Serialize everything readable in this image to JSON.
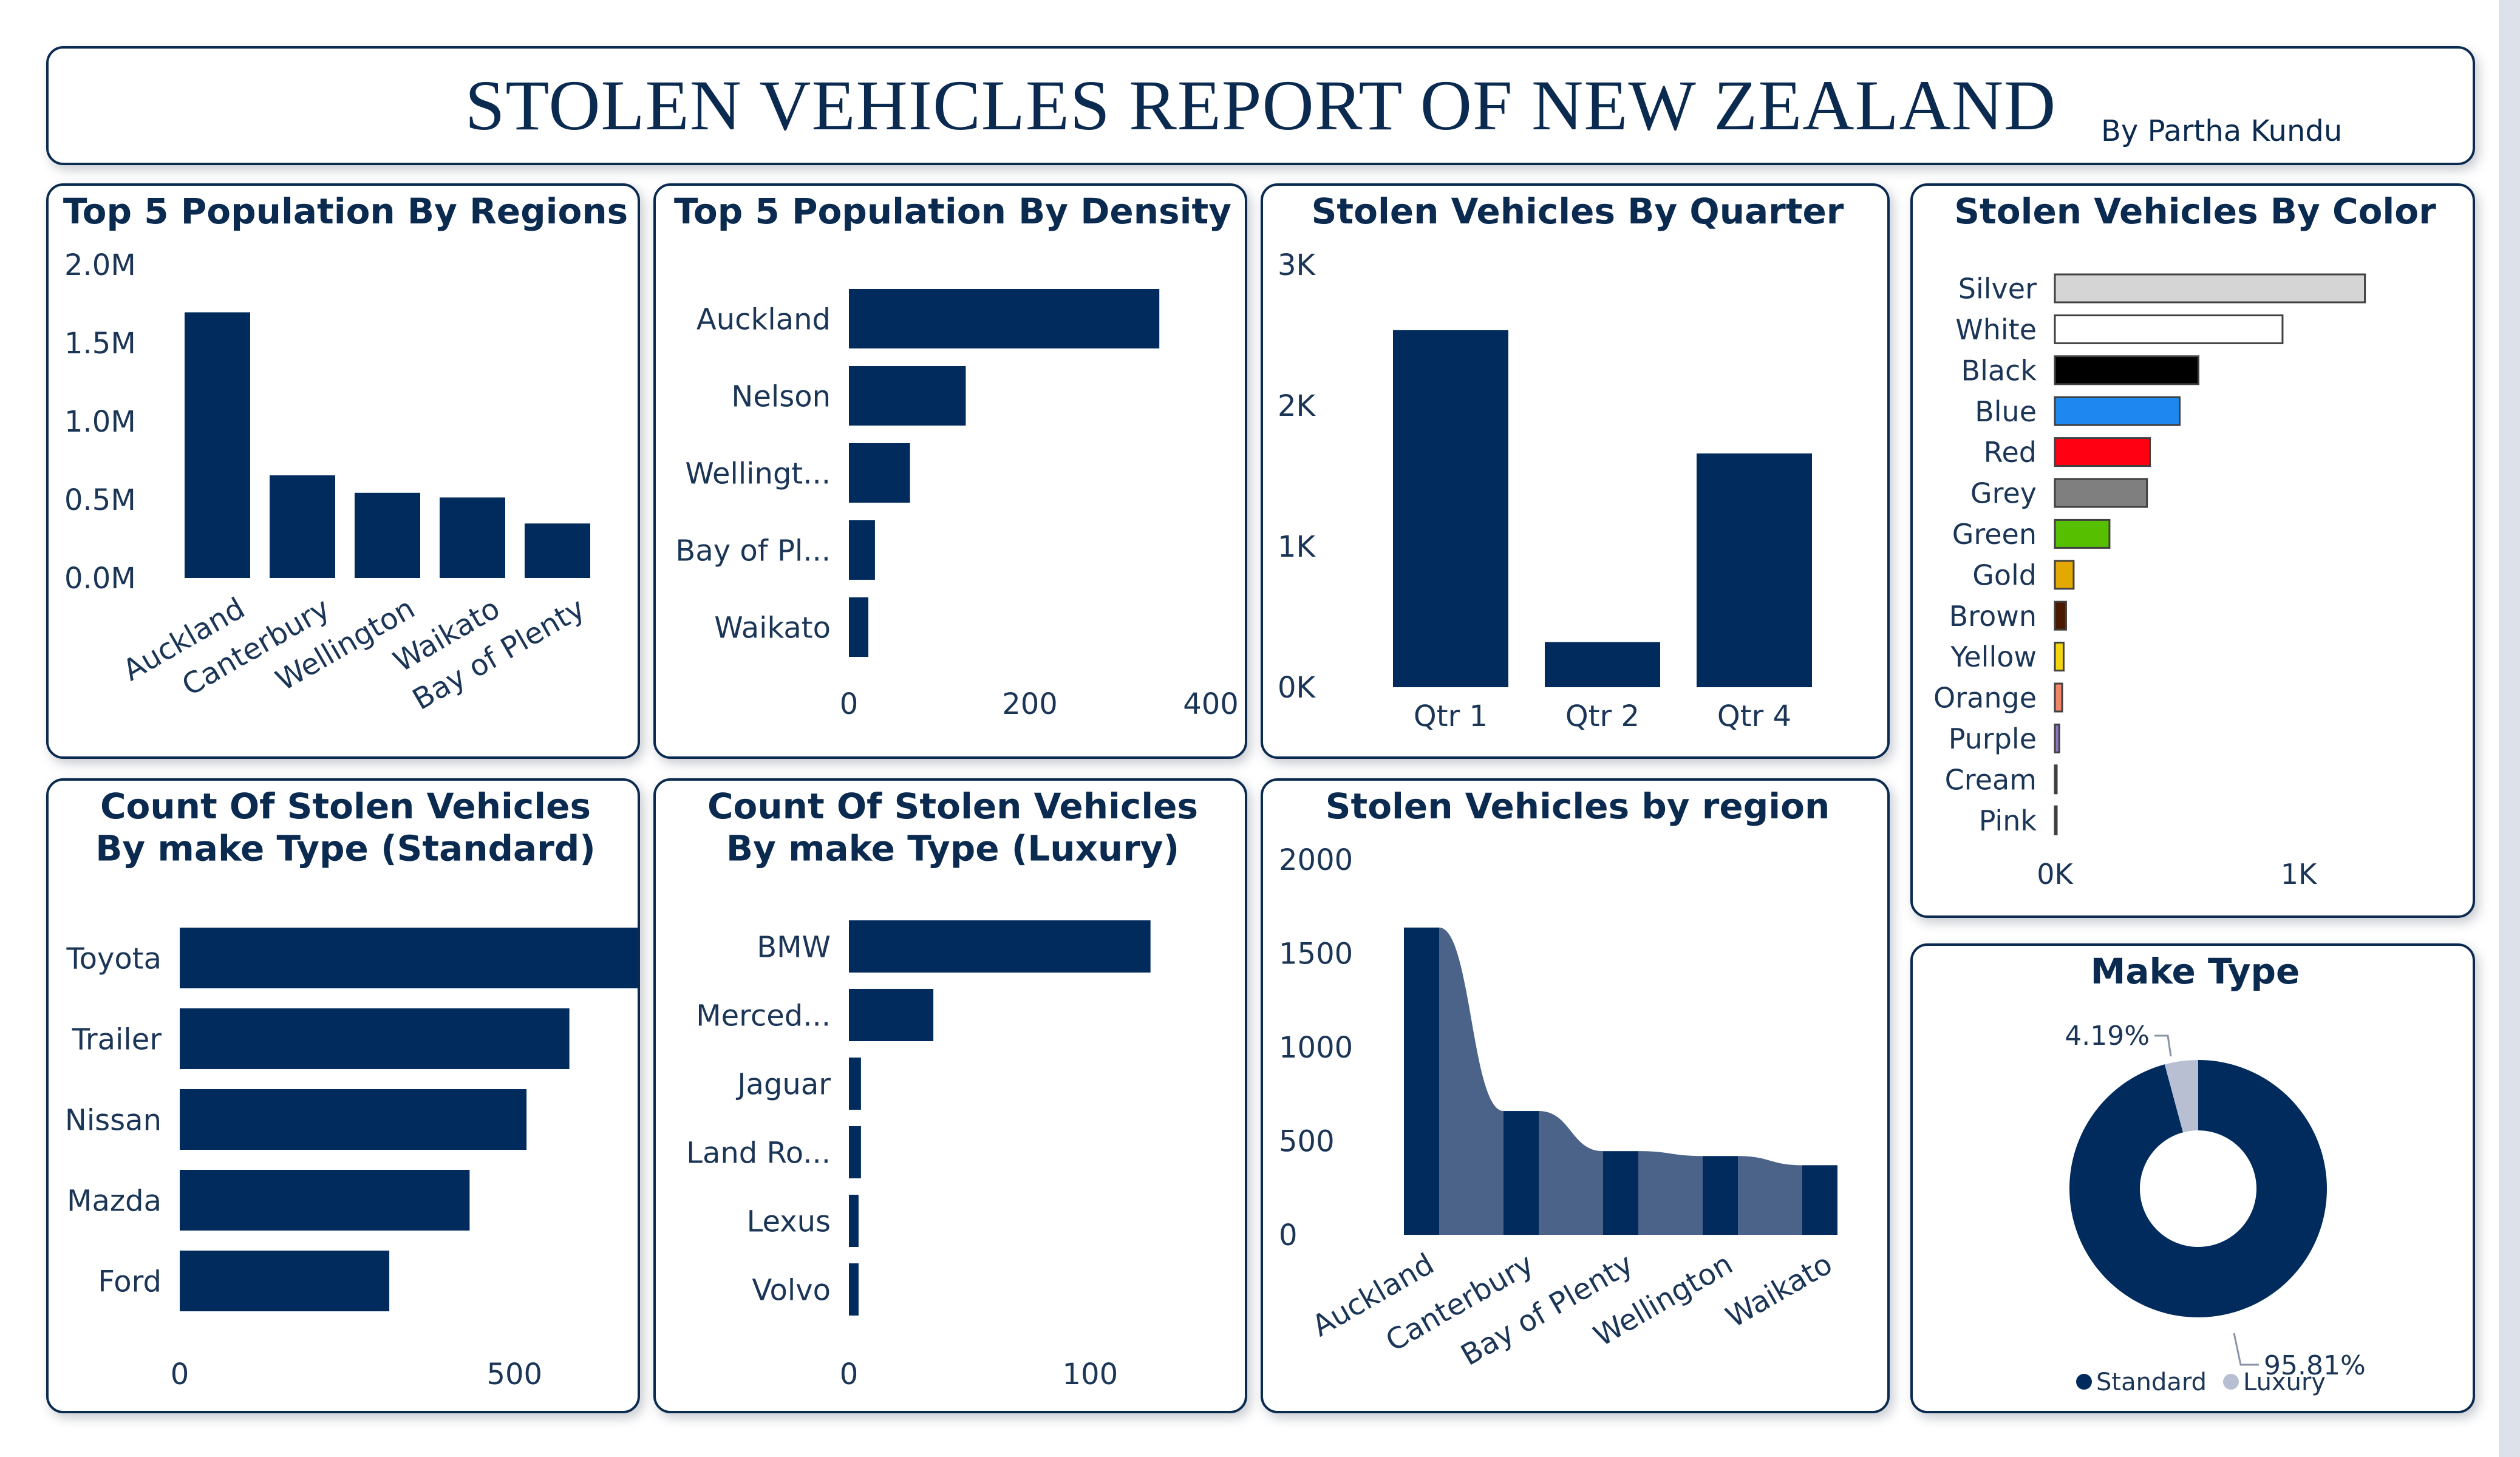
{
  "header": {
    "title": "STOLEN VEHICLES REPORT OF NEW ZEALAND",
    "byline": "By Partha Kundu"
  },
  "colors": {
    "bar": "#002b5c",
    "area": "#4b6388",
    "luxury": "#b8bfd3"
  },
  "chart_data": [
    {
      "id": "pop-regions",
      "type": "bar",
      "title": "Top 5 Population By Regions",
      "categories": [
        "Auckland",
        "Canterbury",
        "Wellington",
        "Waikato",
        "Bay of Plenty"
      ],
      "values": [
        1695900,
        655000,
        543500,
        513800,
        347700
      ],
      "ylim": [
        0,
        2000000
      ],
      "ytick_values": [
        0,
        500000,
        1000000,
        1500000,
        2000000
      ],
      "yticks": [
        "0.0M",
        "0.5M",
        "1.0M",
        "1.5M",
        "2.0M"
      ]
    },
    {
      "id": "pop-density",
      "type": "bar",
      "orientation": "horizontal",
      "title": "Top 5 Population By Density",
      "categories": [
        "Auckland",
        "Nelson",
        "Wellingt...",
        "Bay of Pl...",
        "Waikato"
      ],
      "values": [
        343.09,
        129.15,
        67.52,
        28.8,
        21.5
      ],
      "xlim": [
        0,
        400
      ],
      "xtick_values": [
        0,
        200,
        400
      ],
      "xticks": [
        "0",
        "200",
        "400"
      ]
    },
    {
      "id": "by-quarter",
      "type": "bar",
      "title": "Stolen Vehicles By Quarter",
      "categories": [
        "Qtr 1",
        "Qtr 2",
        "Qtr 4"
      ],
      "values": [
        2535,
        320,
        1660
      ],
      "ylim": [
        0,
        3000
      ],
      "ytick_values": [
        0,
        1000,
        2000,
        3000
      ],
      "yticks": [
        "0K",
        "1K",
        "2K",
        "3K"
      ]
    },
    {
      "id": "by-color",
      "type": "bar",
      "orientation": "horizontal",
      "title": "Stolen Vehicles By Color",
      "categories": [
        "Silver",
        "White",
        "Black",
        "Blue",
        "Red",
        "Grey",
        "Green",
        "Gold",
        "Brown",
        "Yellow",
        "Orange",
        "Purple",
        "Cream",
        "Pink"
      ],
      "values": [
        1272,
        934,
        589,
        512,
        390,
        378,
        224,
        77,
        46,
        36,
        30,
        18,
        6,
        3
      ],
      "bar_colors": [
        "#d5d5d5",
        "#ffffff",
        "#000000",
        "#1e88f0",
        "#ff0013",
        "#7f7f7f",
        "#56c000",
        "#e4a900",
        "#4a1a00",
        "#f2d50f",
        "#f0856a",
        "#8b78c0",
        "#f5f0dc",
        "#f6b6c8"
      ],
      "xlim": [
        0,
        1400
      ],
      "xtick_values": [
        0,
        1000
      ],
      "xticks": [
        "0K",
        "1K"
      ]
    },
    {
      "id": "make-standard",
      "type": "bar",
      "orientation": "horizontal",
      "title": "Count Of Stolen Vehicles By make Type (Standard)",
      "categories": [
        "Toyota",
        "Trailer",
        "Nissan",
        "Mazda",
        "Ford"
      ],
      "values": [
        716,
        582,
        518,
        433,
        313
      ],
      "xlim": [
        0,
        800
      ],
      "xtick_values": [
        0,
        500
      ],
      "xticks": [
        "0",
        "500"
      ]
    },
    {
      "id": "make-luxury",
      "type": "bar",
      "orientation": "horizontal",
      "title": "Count Of Stolen Vehicles By make Type (Luxury)",
      "categories": [
        "BMW",
        "Merced...",
        "Jaguar",
        "Land Ro...",
        "Lexus",
        "Volvo"
      ],
      "values": [
        125,
        35,
        5,
        5,
        4,
        4
      ],
      "xlim": [
        0,
        150
      ],
      "xtick_values": [
        0,
        100
      ],
      "xticks": [
        "0",
        "100"
      ]
    },
    {
      "id": "by-region",
      "type": "bar",
      "title": "Stolen Vehicles by region",
      "categories": [
        "Auckland",
        "Canterbury",
        "Bay of Plenty",
        "Wellington",
        "Waikato"
      ],
      "values": [
        1638,
        660,
        446,
        420,
        371
      ],
      "ylim": [
        0,
        2000
      ],
      "ytick_values": [
        0,
        500,
        1000,
        1500,
        2000
      ],
      "yticks": [
        "0",
        "500",
        "1000",
        "1500",
        "2000"
      ]
    },
    {
      "id": "make-type",
      "type": "pie",
      "title": "Make Type",
      "categories": [
        "Standard",
        "Luxury"
      ],
      "values": [
        95.81,
        4.19
      ],
      "labels": [
        "95.81%",
        "4.19%"
      ],
      "legend": [
        "Standard",
        "Luxury"
      ],
      "legend_placement": "bottom"
    }
  ]
}
